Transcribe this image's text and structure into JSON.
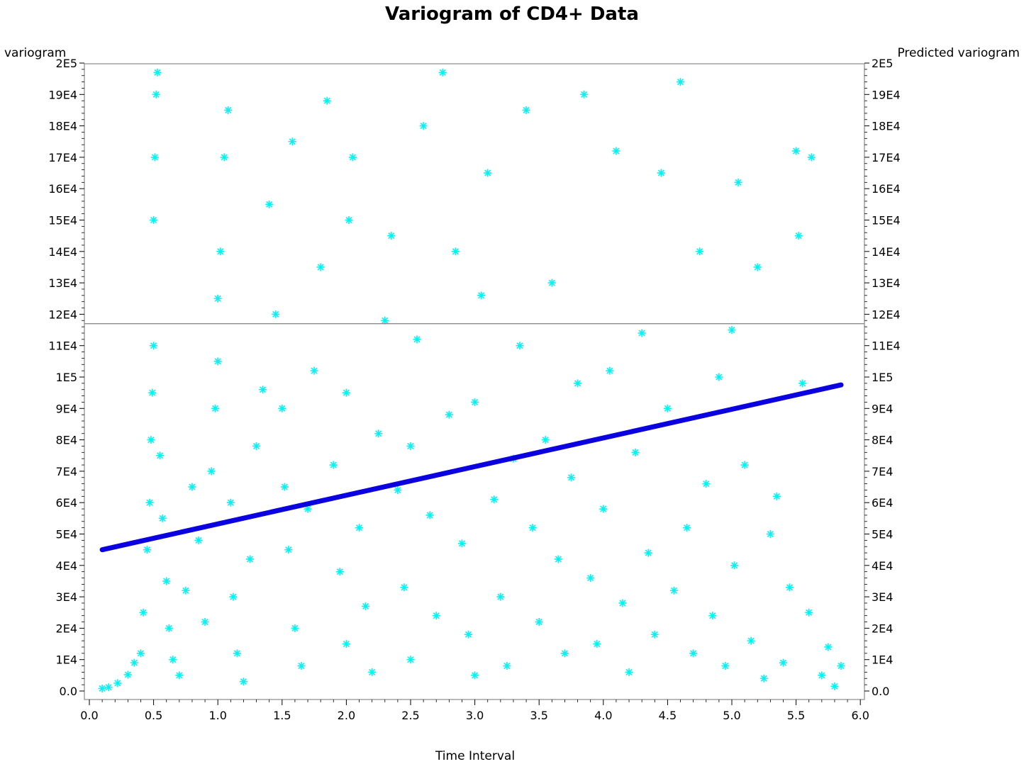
{
  "chart_data": {
    "type": "scatter",
    "title": "Variogram of CD4+ Data",
    "xlabel": "Time Interval",
    "ylabel": "variogram",
    "y2label": "Predicted variogram",
    "xlim": [
      0,
      6
    ],
    "ylim": [
      0,
      200000
    ],
    "x_ticks": [
      "0.0",
      "0.5",
      "1.0",
      "1.5",
      "2.0",
      "2.5",
      "3.0",
      "3.5",
      "4.0",
      "4.5",
      "5.0",
      "5.5",
      "6.0"
    ],
    "y_ticks": [
      "0.0",
      "1E4",
      "2E4",
      "3E4",
      "4E4",
      "5E4",
      "6E4",
      "7E4",
      "8E4",
      "9E4",
      "1E5",
      "11E4",
      "12E4",
      "13E4",
      "14E4",
      "15E4",
      "16E4",
      "17E4",
      "18E4",
      "19E4",
      "2E5"
    ],
    "reference_line": {
      "y": 117000
    },
    "fitted_line": {
      "x": [
        0.1,
        5.85
      ],
      "y": [
        45000,
        97500
      ]
    },
    "series": [
      {
        "style": "asterisk",
        "points": [
          [
            0.1,
            800
          ],
          [
            0.15,
            1200
          ],
          [
            0.22,
            2500
          ],
          [
            0.3,
            5200
          ],
          [
            0.35,
            9000
          ],
          [
            0.4,
            12000
          ],
          [
            0.42,
            25000
          ],
          [
            0.45,
            45000
          ],
          [
            0.47,
            60000
          ],
          [
            0.48,
            80000
          ],
          [
            0.49,
            95000
          ],
          [
            0.5,
            110000
          ],
          [
            0.5,
            150000
          ],
          [
            0.51,
            170000
          ],
          [
            0.52,
            190000
          ],
          [
            0.53,
            197000
          ],
          [
            0.55,
            75000
          ],
          [
            0.57,
            55000
          ],
          [
            0.6,
            35000
          ],
          [
            0.62,
            20000
          ],
          [
            0.65,
            10000
          ],
          [
            0.7,
            5000
          ],
          [
            0.75,
            32000
          ],
          [
            0.8,
            65000
          ],
          [
            0.85,
            48000
          ],
          [
            0.9,
            22000
          ],
          [
            0.95,
            70000
          ],
          [
            0.98,
            90000
          ],
          [
            1.0,
            105000
          ],
          [
            1.0,
            125000
          ],
          [
            1.02,
            140000
          ],
          [
            1.05,
            170000
          ],
          [
            1.08,
            185000
          ],
          [
            1.1,
            60000
          ],
          [
            1.12,
            30000
          ],
          [
            1.15,
            12000
          ],
          [
            1.2,
            3000
          ],
          [
            1.25,
            42000
          ],
          [
            1.3,
            78000
          ],
          [
            1.35,
            96000
          ],
          [
            1.4,
            155000
          ],
          [
            1.45,
            120000
          ],
          [
            1.5,
            90000
          ],
          [
            1.52,
            65000
          ],
          [
            1.55,
            45000
          ],
          [
            1.58,
            175000
          ],
          [
            1.6,
            20000
          ],
          [
            1.65,
            8000
          ],
          [
            1.7,
            58000
          ],
          [
            1.75,
            102000
          ],
          [
            1.8,
            135000
          ],
          [
            1.85,
            188000
          ],
          [
            1.9,
            72000
          ],
          [
            1.95,
            38000
          ],
          [
            2.0,
            15000
          ],
          [
            2.0,
            95000
          ],
          [
            2.02,
            150000
          ],
          [
            2.05,
            170000
          ],
          [
            2.1,
            52000
          ],
          [
            2.15,
            27000
          ],
          [
            2.2,
            6000
          ],
          [
            2.25,
            82000
          ],
          [
            2.3,
            118000
          ],
          [
            2.35,
            145000
          ],
          [
            2.4,
            64000
          ],
          [
            2.45,
            33000
          ],
          [
            2.5,
            10000
          ],
          [
            2.5,
            78000
          ],
          [
            2.55,
            112000
          ],
          [
            2.6,
            180000
          ],
          [
            2.65,
            56000
          ],
          [
            2.7,
            24000
          ],
          [
            2.75,
            197000
          ],
          [
            2.8,
            88000
          ],
          [
            2.85,
            140000
          ],
          [
            2.9,
            47000
          ],
          [
            2.95,
            18000
          ],
          [
            3.0,
            5000
          ],
          [
            3.0,
            92000
          ],
          [
            3.05,
            126000
          ],
          [
            3.1,
            165000
          ],
          [
            3.15,
            61000
          ],
          [
            3.2,
            30000
          ],
          [
            3.25,
            8000
          ],
          [
            3.3,
            74000
          ],
          [
            3.35,
            110000
          ],
          [
            3.4,
            185000
          ],
          [
            3.45,
            52000
          ],
          [
            3.5,
            22000
          ],
          [
            3.55,
            80000
          ],
          [
            3.6,
            130000
          ],
          [
            3.65,
            42000
          ],
          [
            3.7,
            12000
          ],
          [
            3.75,
            68000
          ],
          [
            3.8,
            98000
          ],
          [
            3.85,
            190000
          ],
          [
            3.9,
            36000
          ],
          [
            3.95,
            15000
          ],
          [
            4.0,
            58000
          ],
          [
            4.05,
            102000
          ],
          [
            4.1,
            172000
          ],
          [
            4.15,
            28000
          ],
          [
            4.2,
            6000
          ],
          [
            4.25,
            76000
          ],
          [
            4.3,
            114000
          ],
          [
            4.35,
            44000
          ],
          [
            4.4,
            18000
          ],
          [
            4.45,
            165000
          ],
          [
            4.5,
            90000
          ],
          [
            4.55,
            32000
          ],
          [
            4.6,
            194000
          ],
          [
            4.65,
            52000
          ],
          [
            4.7,
            12000
          ],
          [
            4.75,
            140000
          ],
          [
            4.8,
            66000
          ],
          [
            4.85,
            24000
          ],
          [
            4.9,
            100000
          ],
          [
            4.95,
            8000
          ],
          [
            5.0,
            115000
          ],
          [
            5.02,
            40000
          ],
          [
            5.05,
            162000
          ],
          [
            5.1,
            72000
          ],
          [
            5.15,
            16000
          ],
          [
            5.2,
            135000
          ],
          [
            5.25,
            4000
          ],
          [
            5.3,
            50000
          ],
          [
            5.35,
            62000
          ],
          [
            5.4,
            9000
          ],
          [
            5.45,
            33000
          ],
          [
            5.5,
            172000
          ],
          [
            5.52,
            145000
          ],
          [
            5.55,
            98000
          ],
          [
            5.6,
            25000
          ],
          [
            5.62,
            170000
          ],
          [
            5.7,
            5000
          ],
          [
            5.75,
            14000
          ],
          [
            5.8,
            1500
          ],
          [
            5.85,
            8000
          ]
        ]
      }
    ]
  }
}
